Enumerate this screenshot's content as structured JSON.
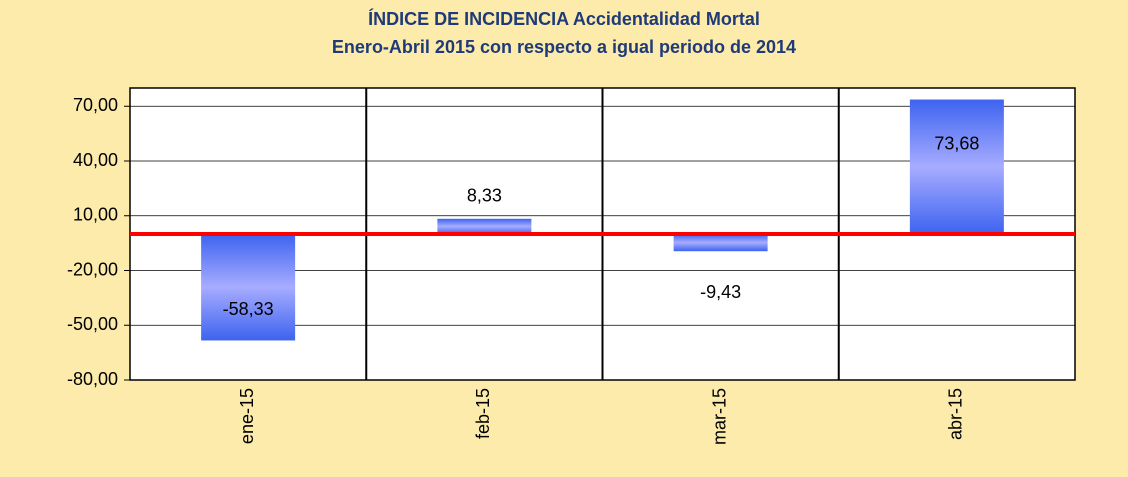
{
  "chart_data": {
    "type": "bar",
    "title": "ÍNDICE DE INCIDENCIA Accidentalidad Mortal",
    "subtitle": "Enero-Abril 2015 con respecto a igual periodo de 2014",
    "categories": [
      "ene-15",
      "feb-15",
      "mar-15",
      "abr-15"
    ],
    "values": [
      -58.33,
      8.33,
      -9.43,
      73.68
    ],
    "value_labels": [
      "-58,33",
      "8,33",
      "-9,43",
      "73,68"
    ],
    "color": "#3d63f0",
    "reference_line": {
      "value": 0,
      "color": "#ff0000"
    },
    "ylim": [
      -80,
      80
    ],
    "yticks": [
      {
        "value": -80,
        "label": "-80,00"
      },
      {
        "value": -50,
        "label": "-50,00"
      },
      {
        "value": -20,
        "label": "-20,00"
      },
      {
        "value": 10,
        "label": "10,00"
      },
      {
        "value": 40,
        "label": "40,00"
      },
      {
        "value": 70,
        "label": "70,00"
      }
    ],
    "grid": true
  }
}
